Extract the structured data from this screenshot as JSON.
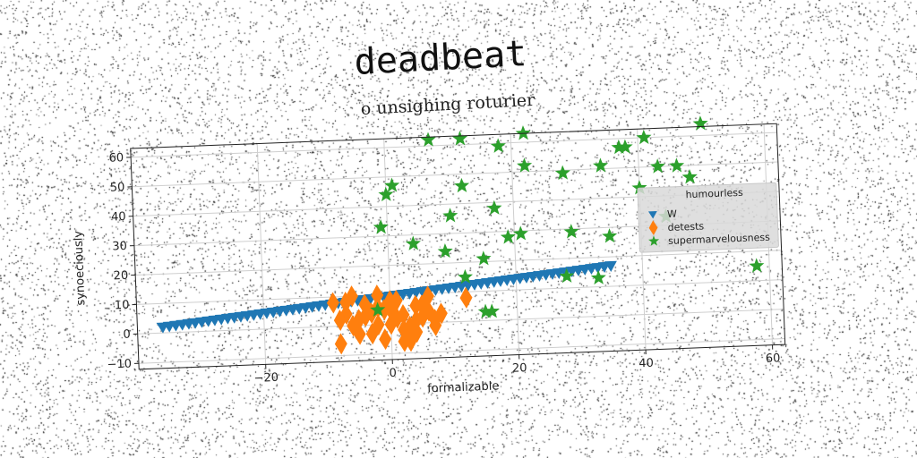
{
  "chart_data": {
    "type": "scatter",
    "title": "deadbeat",
    "subtitle": "o unsighing roturier",
    "xlabel": "formalizable",
    "ylabel": "synoeciously",
    "xlim": [
      -40,
      62
    ],
    "ylim": [
      -12,
      63
    ],
    "xticks": [
      -20,
      0,
      20,
      40,
      60
    ],
    "yticks": [
      -10,
      0,
      10,
      20,
      30,
      40,
      50,
      60
    ],
    "grid": true,
    "legend": {
      "title": "humourless",
      "placement": "right"
    },
    "series": [
      {
        "name": "W",
        "marker": "triangle-down",
        "color": "#1f77b4",
        "x_start": -36,
        "x_end": 35,
        "count": 70,
        "y_start": 2,
        "y_end": 17
      },
      {
        "name": "detests",
        "marker": "thin-diamond",
        "color": "#ff7f0e",
        "x": [
          -9,
          -7,
          -6,
          -5,
          -4,
          -3,
          -2,
          -1,
          0,
          1,
          2,
          3,
          4,
          5,
          6,
          7,
          8,
          12,
          -8,
          -6,
          -4,
          -2,
          0,
          2,
          4,
          -3,
          -1,
          1,
          3,
          5,
          -5,
          -7,
          0,
          2,
          4,
          6,
          -2,
          -8,
          7,
          3
        ],
        "y": [
          8,
          4,
          10,
          2,
          7,
          -3,
          10,
          5,
          0,
          8,
          3,
          -4,
          6,
          2,
          9,
          1,
          3,
          8,
          -6,
          0,
          3,
          6,
          8,
          -2,
          1,
          4,
          -5,
          2,
          -1,
          6,
          -3,
          8,
          5,
          -6,
          -3,
          4,
          0,
          2,
          -1,
          -6
        ]
      },
      {
        "name": "supermarvelousness",
        "marker": "star",
        "color": "#2ca02c",
        "x": [
          50,
          7,
          12,
          22,
          18,
          1,
          0,
          12,
          10,
          17,
          4,
          9,
          15,
          19,
          21,
          28,
          34,
          41,
          37,
          38,
          43,
          46,
          48,
          40,
          44,
          22,
          29,
          35,
          12,
          16,
          28,
          -1,
          58,
          15,
          -2,
          33
        ],
        "y": [
          64,
          62,
          62,
          63,
          59,
          47,
          44,
          46,
          36,
          38,
          27,
          24,
          21,
          28,
          29,
          49,
          51,
          60,
          57,
          57,
          50,
          50,
          46,
          43,
          33,
          52,
          29,
          27,
          15,
          3,
          14,
          33,
          15,
          3,
          5,
          13
        ]
      }
    ]
  }
}
